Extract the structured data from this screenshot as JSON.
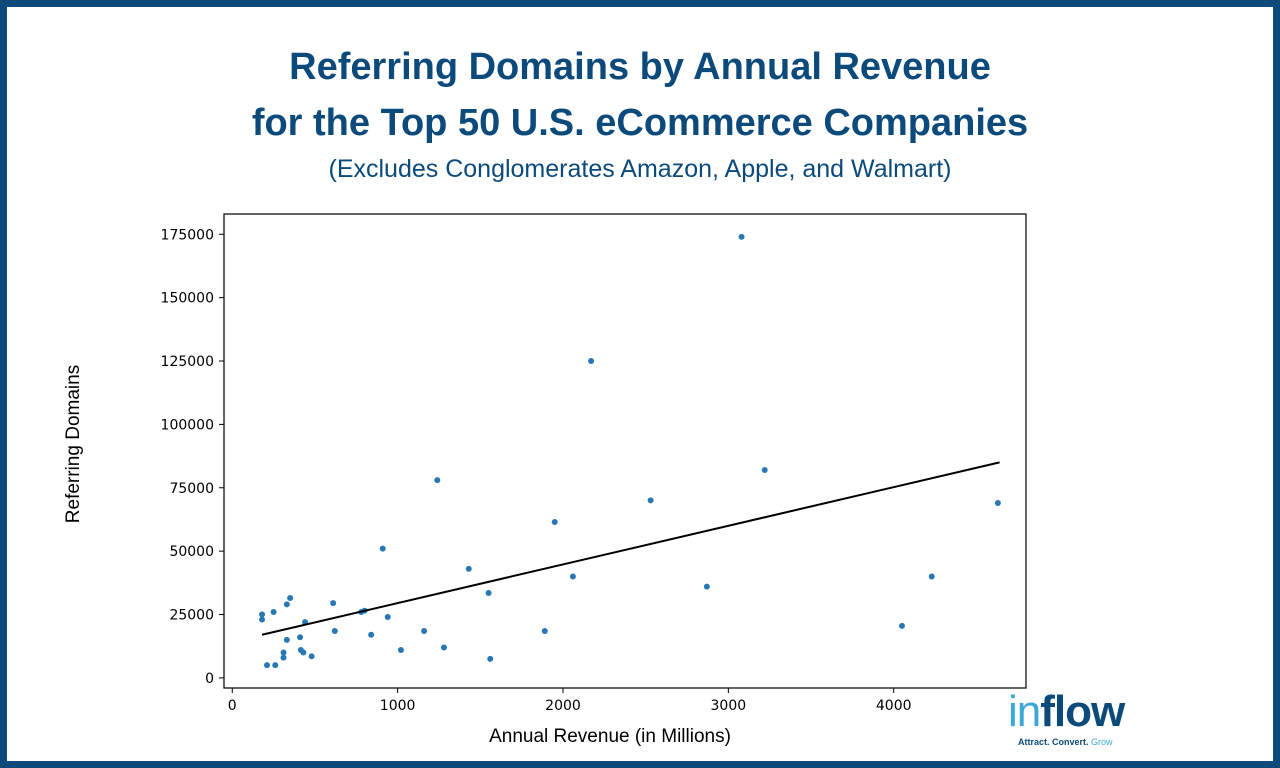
{
  "colors": {
    "border": "#0b4a7a",
    "title": "#0b4a7a",
    "points": "#2878b5",
    "trendline": "#000000",
    "logo_light": "#3aa7d9",
    "logo_dark": "#0b4a7a"
  },
  "header": {
    "title_line1": "Referring Domains by Annual Revenue",
    "title_line2": "for the Top 50 U.S. eCommerce Companies",
    "subtitle": "(Excludes Conglomerates Amazon, Apple, and Walmart)"
  },
  "logo": {
    "word_part1": "in",
    "word_part2": "flow",
    "tagline": "Attract. Convert.",
    "tagline_end": "Grow"
  },
  "chart_data": {
    "type": "scatter",
    "xlabel": "Annual Revenue (in Millions)",
    "ylabel": "Referring Domains",
    "xlim": [
      -50,
      4800
    ],
    "ylim": [
      -4000,
      183000
    ],
    "xticks": [
      0,
      1000,
      2000,
      3000,
      4000
    ],
    "yticks": [
      0,
      25000,
      50000,
      75000,
      100000,
      125000,
      150000,
      175000
    ],
    "grid": false,
    "trendline": {
      "x": [
        180,
        4640
      ],
      "y": [
        17000,
        85000
      ]
    },
    "points": [
      [
        180,
        23000
      ],
      [
        180,
        25000
      ],
      [
        210,
        5000
      ],
      [
        250,
        26000
      ],
      [
        260,
        5000
      ],
      [
        310,
        8000
      ],
      [
        310,
        10000
      ],
      [
        330,
        15000
      ],
      [
        330,
        29000
      ],
      [
        350,
        31500
      ],
      [
        410,
        16000
      ],
      [
        415,
        11000
      ],
      [
        430,
        10000
      ],
      [
        440,
        22000
      ],
      [
        480,
        8500
      ],
      [
        610,
        29500
      ],
      [
        620,
        18500
      ],
      [
        780,
        26000
      ],
      [
        800,
        26500
      ],
      [
        840,
        17000
      ],
      [
        910,
        51000
      ],
      [
        940,
        24000
      ],
      [
        1020,
        11000
      ],
      [
        1160,
        18500
      ],
      [
        1240,
        78000
      ],
      [
        1280,
        12000
      ],
      [
        1430,
        43000
      ],
      [
        1550,
        33500
      ],
      [
        1560,
        7500
      ],
      [
        1890,
        18500
      ],
      [
        1950,
        61500
      ],
      [
        2060,
        40000
      ],
      [
        2170,
        125000
      ],
      [
        2530,
        70000
      ],
      [
        2870,
        36000
      ],
      [
        3080,
        174000
      ],
      [
        3220,
        82000
      ],
      [
        4050,
        20500
      ],
      [
        4230,
        40000
      ],
      [
        4630,
        69000
      ]
    ]
  }
}
